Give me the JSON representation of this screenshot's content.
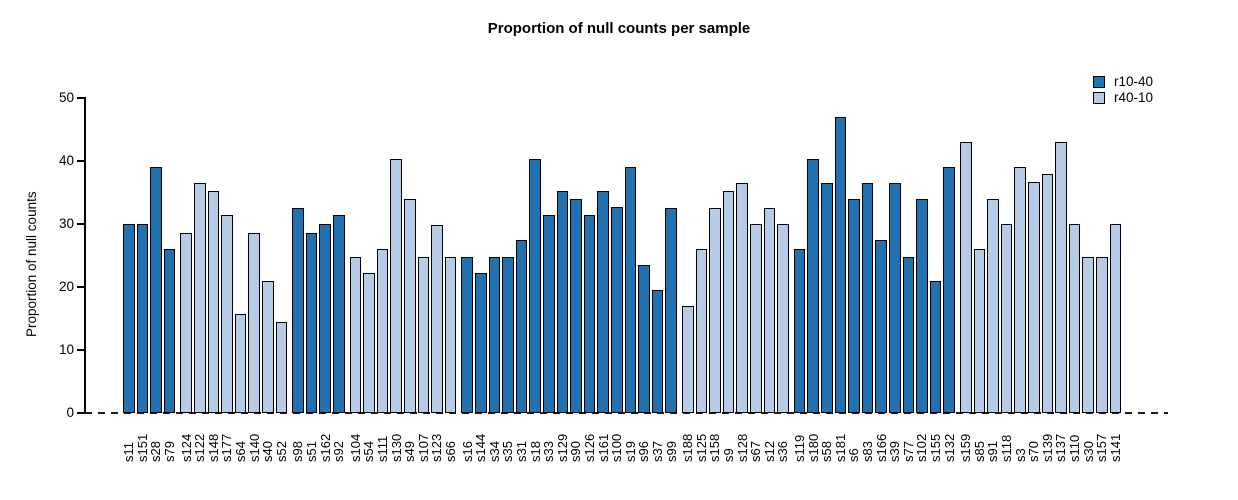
{
  "chart_data": {
    "type": "bar",
    "title": "Proportion of null counts per sample",
    "xlabel": "",
    "ylabel": "Proportion of null counts",
    "ylim": [
      0,
      50
    ],
    "yticks": [
      0,
      10,
      20,
      30,
      40,
      50
    ],
    "grid": false,
    "baseline_style": "dashed",
    "legend_position": "top-right",
    "bar_border_color": "#000000",
    "legend": [
      {
        "name": "r10-40",
        "color": "#2272b2"
      },
      {
        "name": "r40-10",
        "color": "#b6cce6"
      }
    ],
    "bars": [
      {
        "label": "s11",
        "value": 30.0,
        "series": "r10-40"
      },
      {
        "label": "s151",
        "value": 30.0,
        "series": "r10-40"
      },
      {
        "label": "s28",
        "value": 39.1,
        "series": "r10-40"
      },
      {
        "label": "s79",
        "value": 26.1,
        "series": "r10-40"
      },
      {
        "label": "s124",
        "value": 28.6,
        "series": "r40-10"
      },
      {
        "label": "s122",
        "value": 36.5,
        "series": "r40-10"
      },
      {
        "label": "s148",
        "value": 35.2,
        "series": "r40-10"
      },
      {
        "label": "s177",
        "value": 31.4,
        "series": "r40-10"
      },
      {
        "label": "s64",
        "value": 15.7,
        "series": "r40-10"
      },
      {
        "label": "s140",
        "value": 28.6,
        "series": "r40-10"
      },
      {
        "label": "s40",
        "value": 20.9,
        "series": "r40-10"
      },
      {
        "label": "s52",
        "value": 14.4,
        "series": "r40-10"
      },
      {
        "label": "s98",
        "value": 32.6,
        "series": "r10-40"
      },
      {
        "label": "s51",
        "value": 28.6,
        "series": "r10-40"
      },
      {
        "label": "s162",
        "value": 30.0,
        "series": "r10-40"
      },
      {
        "label": "s92",
        "value": 31.4,
        "series": "r10-40"
      },
      {
        "label": "s104",
        "value": 24.8,
        "series": "r40-10"
      },
      {
        "label": "s54",
        "value": 22.2,
        "series": "r40-10"
      },
      {
        "label": "s111",
        "value": 26.1,
        "series": "r40-10"
      },
      {
        "label": "s130",
        "value": 40.3,
        "series": "r40-10"
      },
      {
        "label": "s49",
        "value": 33.9,
        "series": "r40-10"
      },
      {
        "label": "s107",
        "value": 24.8,
        "series": "r40-10"
      },
      {
        "label": "s123",
        "value": 29.9,
        "series": "r40-10"
      },
      {
        "label": "s66",
        "value": 24.8,
        "series": "r40-10"
      },
      {
        "label": "s16",
        "value": 24.8,
        "series": "r10-40"
      },
      {
        "label": "s144",
        "value": 22.2,
        "series": "r10-40"
      },
      {
        "label": "s34",
        "value": 24.8,
        "series": "r10-40"
      },
      {
        "label": "s35",
        "value": 24.8,
        "series": "r10-40"
      },
      {
        "label": "s31",
        "value": 27.4,
        "series": "r10-40"
      },
      {
        "label": "s18",
        "value": 40.3,
        "series": "r10-40"
      },
      {
        "label": "s33",
        "value": 31.4,
        "series": "r10-40"
      },
      {
        "label": "s129",
        "value": 35.2,
        "series": "r10-40"
      },
      {
        "label": "s90",
        "value": 33.9,
        "series": "r10-40"
      },
      {
        "label": "s126",
        "value": 31.4,
        "series": "r10-40"
      },
      {
        "label": "s161",
        "value": 35.2,
        "series": "r10-40"
      },
      {
        "label": "s100",
        "value": 32.7,
        "series": "r10-40"
      },
      {
        "label": "s19",
        "value": 39.1,
        "series": "r10-40"
      },
      {
        "label": "s96",
        "value": 23.5,
        "series": "r10-40"
      },
      {
        "label": "s37",
        "value": 19.6,
        "series": "r10-40"
      },
      {
        "label": "s99",
        "value": 32.6,
        "series": "r10-40"
      },
      {
        "label": "s188",
        "value": 17.0,
        "series": "r40-10"
      },
      {
        "label": "s125",
        "value": 26.1,
        "series": "r40-10"
      },
      {
        "label": "s158",
        "value": 32.6,
        "series": "r40-10"
      },
      {
        "label": "s9",
        "value": 35.2,
        "series": "r40-10"
      },
      {
        "label": "s128",
        "value": 36.5,
        "series": "r40-10"
      },
      {
        "label": "s67",
        "value": 30.0,
        "series": "r40-10"
      },
      {
        "label": "s12",
        "value": 32.6,
        "series": "r40-10"
      },
      {
        "label": "s36",
        "value": 30.0,
        "series": "r40-10"
      },
      {
        "label": "s119",
        "value": 26.1,
        "series": "r10-40"
      },
      {
        "label": "s180",
        "value": 40.3,
        "series": "r10-40"
      },
      {
        "label": "s58",
        "value": 36.5,
        "series": "r10-40"
      },
      {
        "label": "s181",
        "value": 47.0,
        "series": "r10-40"
      },
      {
        "label": "s6",
        "value": 34.0,
        "series": "r10-40"
      },
      {
        "label": "s83",
        "value": 36.5,
        "series": "r10-40"
      },
      {
        "label": "s166",
        "value": 27.4,
        "series": "r10-40"
      },
      {
        "label": "s39",
        "value": 36.5,
        "series": "r10-40"
      },
      {
        "label": "s77",
        "value": 24.8,
        "series": "r10-40"
      },
      {
        "label": "s102",
        "value": 34.0,
        "series": "r10-40"
      },
      {
        "label": "s155",
        "value": 21.0,
        "series": "r10-40"
      },
      {
        "label": "s132",
        "value": 39.1,
        "series": "r10-40"
      },
      {
        "label": "s159",
        "value": 43.0,
        "series": "r40-10"
      },
      {
        "label": "s85",
        "value": 26.1,
        "series": "r40-10"
      },
      {
        "label": "s91",
        "value": 34.0,
        "series": "r40-10"
      },
      {
        "label": "s118",
        "value": 30.0,
        "series": "r40-10"
      },
      {
        "label": "s3",
        "value": 39.1,
        "series": "r40-10"
      },
      {
        "label": "s70",
        "value": 36.6,
        "series": "r40-10"
      },
      {
        "label": "s139",
        "value": 37.9,
        "series": "r40-10"
      },
      {
        "label": "s137",
        "value": 43.0,
        "series": "r40-10"
      },
      {
        "label": "s110",
        "value": 30.0,
        "series": "r40-10"
      },
      {
        "label": "s30",
        "value": 24.8,
        "series": "r40-10"
      },
      {
        "label": "s157",
        "value": 24.8,
        "series": "r40-10"
      },
      {
        "label": "s141",
        "value": 30.0,
        "series": "r40-10"
      }
    ]
  }
}
